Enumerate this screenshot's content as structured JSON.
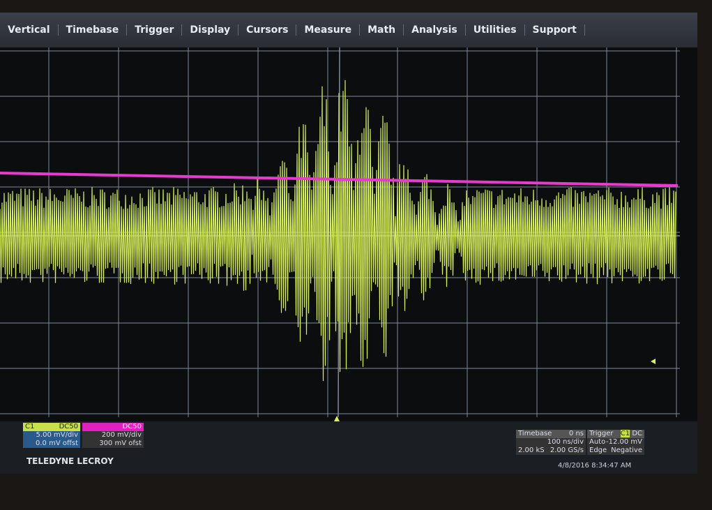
{
  "menu": {
    "items": [
      "Vertical",
      "Timebase",
      "Trigger",
      "Display",
      "Cursors",
      "Measure",
      "Math",
      "Analysis",
      "Utilities",
      "Support"
    ]
  },
  "channels": [
    {
      "name": "C1",
      "coupling": "DC50",
      "scale": "5.00 mV/div",
      "offset": "0.0 mV offst"
    },
    {
      "coupling": "DC50",
      "scale": "200 mV/div",
      "offset": "300 mV ofst"
    }
  ],
  "timebase": {
    "title": "Timebase",
    "delay": "0 ns",
    "scale": "100 ns/div",
    "samples": "2.00 kS",
    "rate": "2.00 GS/s"
  },
  "trigger": {
    "title": "Trigger",
    "source": "C1",
    "coupling": "DC",
    "mode": "Auto",
    "level": "-12.00 mV",
    "type": "Edge",
    "slope": "Negative"
  },
  "brand": "TELEDYNE LECROY",
  "timestamp": "4/8/2016 8:34:47 AM"
}
